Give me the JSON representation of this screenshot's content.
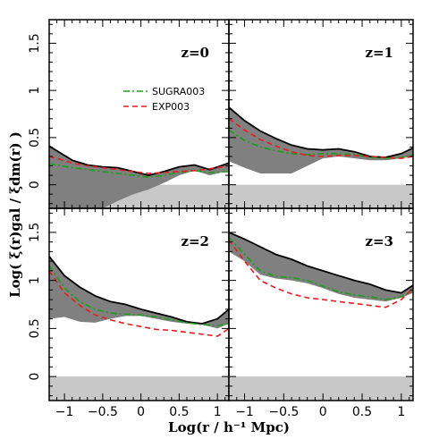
{
  "chart_data": {
    "type": "line",
    "xlabel": "Log(r / h⁻¹ Mpc)",
    "ylabel": "Log( ξ(r)gal / ξdm(r) )",
    "xlim": [
      -1.2,
      1.15
    ],
    "ylim": [
      -0.25,
      1.75
    ],
    "x_ticks": [
      -1,
      -0.5,
      0,
      0.5,
      1
    ],
    "x_tick_labels": [
      "−1",
      "−0.5",
      "0",
      "0.5",
      "1"
    ],
    "y_ticks": [
      0,
      0.5,
      1,
      1.5
    ],
    "y_tick_labels": [
      "0",
      "0.5",
      "1",
      "1.5"
    ],
    "grid": false,
    "legend": {
      "placement": "top-right of panel z=0",
      "entries": [
        {
          "label": "SUGRA003",
          "color": "#1a9e1a",
          "dash": "dash-dot"
        },
        {
          "label": "EXP003",
          "color": "#e81c1c",
          "dash": "dashed"
        }
      ]
    },
    "colors": {
      "band": "#808080",
      "baseline_band": "#c8c8c8",
      "band_edge": "#000000",
      "sugra": "#1a9e1a",
      "exp": "#e81c1c"
    },
    "baseline_band_range": [
      -0.25,
      0
    ],
    "panels": [
      {
        "label": "z=0",
        "x": [
          -1.2,
          -1.1,
          -0.9,
          -0.7,
          -0.5,
          -0.3,
          -0.1,
          0.1,
          0.3,
          0.5,
          0.7,
          0.9,
          1.15
        ],
        "band_upper": [
          0.41,
          0.36,
          0.26,
          0.21,
          0.19,
          0.18,
          0.14,
          0.1,
          0.14,
          0.19,
          0.21,
          0.16,
          0.23
        ],
        "band_lower": [
          -0.25,
          -0.25,
          -0.25,
          -0.25,
          -0.25,
          -0.17,
          -0.1,
          -0.05,
          0.02,
          0.1,
          0.15,
          0.1,
          0.15
        ],
        "series": [
          {
            "name": "SUGRA003",
            "values": [
              0.22,
              0.21,
              0.18,
              0.16,
              0.14,
              0.12,
              0.1,
              0.08,
              0.1,
              0.13,
              0.15,
              0.13,
              0.14
            ]
          },
          {
            "name": "EXP003",
            "values": [
              0.3,
              0.28,
              0.23,
              0.2,
              0.18,
              0.16,
              0.14,
              0.12,
              0.13,
              0.14,
              0.15,
              0.17,
              0.2
            ]
          }
        ]
      },
      {
        "label": "z=1",
        "x": [
          -1.2,
          -1.0,
          -0.8,
          -0.6,
          -0.4,
          -0.2,
          0.0,
          0.2,
          0.4,
          0.6,
          0.8,
          1.0,
          1.15
        ],
        "band_upper": [
          0.82,
          0.68,
          0.57,
          0.49,
          0.42,
          0.38,
          0.37,
          0.38,
          0.35,
          0.3,
          0.29,
          0.33,
          0.39
        ],
        "band_lower": [
          0.25,
          0.18,
          0.12,
          0.12,
          0.12,
          0.2,
          0.28,
          0.3,
          0.28,
          0.26,
          0.26,
          0.28,
          0.3
        ],
        "series": [
          {
            "name": "SUGRA003",
            "values": [
              0.58,
              0.47,
              0.4,
              0.36,
              0.33,
              0.32,
              0.33,
              0.33,
              0.32,
              0.29,
              0.28,
              0.29,
              0.32
            ]
          },
          {
            "name": "EXP003",
            "values": [
              0.7,
              0.58,
              0.48,
              0.41,
              0.35,
              0.31,
              0.3,
              0.31,
              0.31,
              0.3,
              0.29,
              0.28,
              0.3
            ]
          }
        ]
      },
      {
        "label": "z=2",
        "x": [
          -1.2,
          -1.0,
          -0.8,
          -0.6,
          -0.4,
          -0.2,
          0.0,
          0.2,
          0.4,
          0.6,
          0.8,
          1.0,
          1.15
        ],
        "band_upper": [
          1.25,
          1.05,
          0.93,
          0.84,
          0.78,
          0.75,
          0.7,
          0.66,
          0.62,
          0.57,
          0.55,
          0.6,
          0.7
        ],
        "band_lower": [
          0.6,
          0.62,
          0.57,
          0.56,
          0.6,
          0.63,
          0.63,
          0.6,
          0.57,
          0.55,
          0.54,
          0.5,
          0.55
        ],
        "series": [
          {
            "name": "SUGRA003",
            "values": [
              1.15,
              0.92,
              0.78,
              0.7,
              0.66,
              0.65,
              0.64,
              0.62,
              0.59,
              0.56,
              0.54,
              0.53,
              0.55
            ]
          },
          {
            "name": "EXP003",
            "values": [
              1.1,
              0.87,
              0.74,
              0.64,
              0.59,
              0.55,
              0.52,
              0.49,
              0.48,
              0.46,
              0.44,
              0.42,
              0.5
            ]
          }
        ]
      },
      {
        "label": "z=3",
        "x": [
          -1.2,
          -1.0,
          -0.8,
          -0.6,
          -0.4,
          -0.2,
          0.0,
          0.2,
          0.4,
          0.6,
          0.8,
          1.0,
          1.15
        ],
        "band_upper": [
          1.5,
          1.43,
          1.35,
          1.27,
          1.22,
          1.15,
          1.1,
          1.05,
          1.0,
          0.96,
          0.9,
          0.87,
          0.95
        ],
        "band_lower": [
          1.3,
          1.2,
          1.06,
          1.02,
          1.0,
          0.97,
          0.92,
          0.86,
          0.82,
          0.8,
          0.78,
          0.82,
          0.87
        ],
        "series": [
          {
            "name": "SUGRA003",
            "values": [
              1.45,
              1.27,
              1.1,
              1.04,
              1.03,
              1.0,
              0.94,
              0.88,
              0.85,
              0.83,
              0.8,
              0.83,
              0.9
            ]
          },
          {
            "name": "EXP003",
            "values": [
              1.42,
              1.2,
              1.0,
              0.92,
              0.86,
              0.82,
              0.8,
              0.78,
              0.76,
              0.74,
              0.72,
              0.8,
              0.92
            ]
          }
        ]
      }
    ]
  }
}
